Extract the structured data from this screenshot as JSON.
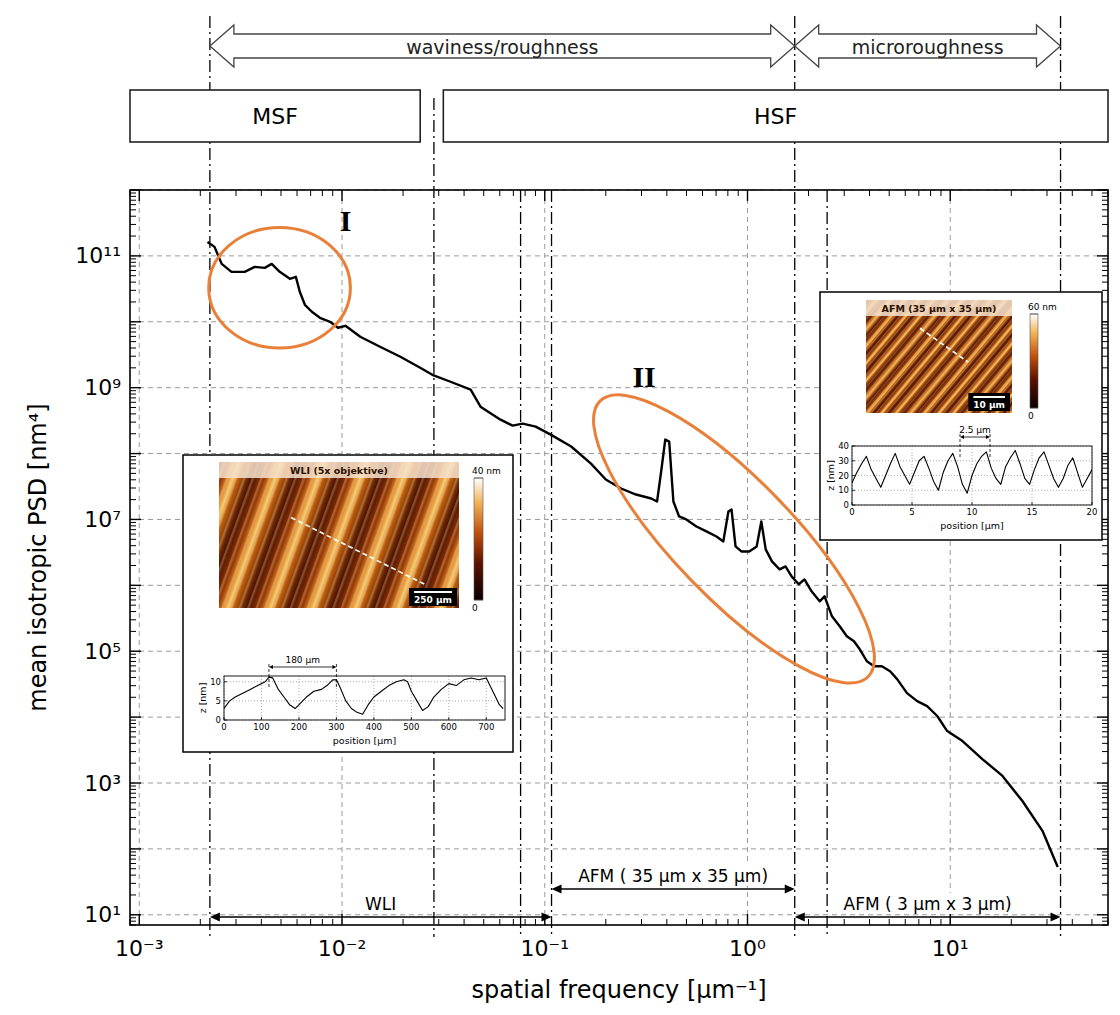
{
  "chart_data": [
    {
      "type": "line",
      "x_label": "spatial frequency [µm⁻¹]",
      "y_label": "mean isotropic PSD [nm⁴]",
      "log": true,
      "grid": true,
      "color": "#000000",
      "xlim": [
        0.0009,
        60
      ],
      "ylim": [
        7,
        1000000000000.0
      ],
      "xticks": [
        {
          "value": 0.001,
          "label": "10⁻³"
        },
        {
          "value": 0.01,
          "label": "10⁻²"
        },
        {
          "value": 0.1,
          "label": "10⁻¹"
        },
        {
          "value": 1,
          "label": "10⁰"
        },
        {
          "value": 10,
          "label": "10¹"
        }
      ],
      "yticks": [
        {
          "value": 10,
          "label": "10¹"
        },
        {
          "value": 1000,
          "label": "10³"
        },
        {
          "value": 100000,
          "label": "10⁵"
        },
        {
          "value": 10000000,
          "label": "10⁷"
        },
        {
          "value": 1000000000,
          "label": "10⁹"
        },
        {
          "value": 100000000000,
          "label": "10¹¹"
        }
      ],
      "x": [
        0.00217,
        0.00235,
        0.00255,
        0.00285,
        0.00331,
        0.00371,
        0.00416,
        0.0045,
        0.00493,
        0.00553,
        0.00592,
        0.00619,
        0.00656,
        0.0071,
        0.00778,
        0.00873,
        0.00955,
        0.0104,
        0.0123,
        0.0154,
        0.0194,
        0.0243,
        0.0279,
        0.0343,
        0.0431,
        0.0482,
        0.0605,
        0.0695,
        0.0778,
        0.0902,
        0.107,
        0.135,
        0.169,
        0.2,
        0.238,
        0.282,
        0.335,
        0.358,
        0.375,
        0.393,
        0.411,
        0.431,
        0.46,
        0.499,
        0.56,
        0.627,
        0.703,
        0.76,
        0.805,
        0.834,
        0.873,
        0.933,
        1.02,
        1.11,
        1.17,
        1.23,
        1.32,
        1.44,
        1.54,
        1.65,
        1.79,
        1.91,
        2.07,
        2.27,
        2.4,
        2.61,
        2.85,
        3.09,
        3.35,
        3.58,
        3.88,
        4.21,
        4.6,
        5.05,
        5.47,
        6.12,
        6.87,
        7.69,
        8.63,
        9.66,
        11.5,
        14.4,
        18.1,
        22.7,
        28.5,
        33.9
      ],
      "values": [
        163000000000.0,
        137000000000.0,
        75700000000.0,
        57300000000.0,
        57300000000.0,
        68100000000.0,
        65800000000.0,
        75700000000.0,
        57300000000.0,
        44900000000.0,
        48100000000.0,
        28500000000.0,
        18100000000.0,
        14200000000.0,
        11500000000.0,
        10000000000.0,
        8110000000.0,
        8690000000.0,
        5930000000.0,
        4180000000.0,
        2950000000.0,
        2010000000.0,
        1570000000.0,
        1230000000.0,
        933000000.0,
        515000000.0,
        327000000.0,
        265000000.0,
        285000000.0,
        256000000.0,
        194000000.0,
        128000000.0,
        70500000.0,
        40400000.0,
        29500000.0,
        23900000.0,
        20800000.0,
        18700000.0,
        53300000.0,
        163000000.0,
        152000000.0,
        18700000.0,
        11100000.0,
        10000000.0,
        7830000.0,
        6580000.0,
        5520000.0,
        4640000.0,
        13200000.0,
        14200000.0,
        3900000.0,
        3270000.0,
        3270000.0,
        3900000.0,
        9330000.0,
        3510000.0,
        2310000.0,
        1750000.0,
        1940000.0,
        1370000.0,
        1040000.0,
        1230000.0,
        811000.0,
        573000.0,
        681000.0,
        339000.0,
        239000.0,
        169000.0,
        142000.0,
        107000.0,
        70500.0,
        59300.0,
        59300.0,
        49800.0,
        37700.0,
        23100.0,
        17500.0,
        14700.0,
        10400.0,
        6140.0,
        4330.0,
        2310.0,
        1280.0,
        533,
        188,
        53.3
      ],
      "vertical_lines": [
        0.00223,
        0.0284,
        0.076,
        0.108,
        1.71,
        2.47,
        35
      ],
      "bands": [
        {
          "label": "waviness/roughness",
          "from": 0.00223,
          "to": 1.71
        },
        {
          "label": "microroughness",
          "from": 1.71,
          "to": 35
        }
      ],
      "regions": [
        {
          "label": "MSF",
          "from": 0.0009,
          "to": 0.0243
        },
        {
          "label": "HSF",
          "from": 0.0316,
          "to": 60
        }
      ],
      "ranges": [
        {
          "label": "WLI",
          "from": 0.00223,
          "to": 0.108
        },
        {
          "label": "AFM ( 35 µm x 35 µm)",
          "from": 0.108,
          "to": 1.71
        },
        {
          "label": "AFM ( 3 µm x 3 µm)",
          "from": 1.71,
          "to": 35
        }
      ],
      "annotations": [
        {
          "text": "I",
          "x": 0.0104,
          "y": 350000000000.0,
          "x_range": [
            0.0022,
            0.011
          ],
          "y_range": [
            4000000000.0,
            270000000000.0
          ]
        },
        {
          "text": "II",
          "x": 0.309,
          "y": 1470000000.0,
          "x_range": [
            0.179,
            4.11
          ],
          "y_range": [
            35000.0,
            730000000.0
          ]
        }
      ]
    },
    {
      "type": "line",
      "x_label": "position [µm]",
      "y_label": "z [nm]",
      "grid": true,
      "color": "#000000",
      "xlim": [
        0,
        750
      ],
      "ylim": [
        0,
        11.5
      ],
      "xticks": [
        0,
        100,
        200,
        300,
        400,
        500,
        600,
        700
      ],
      "yticks": [
        0,
        5,
        10
      ],
      "x": [
        0,
        15,
        30,
        50,
        70,
        90,
        110,
        120,
        130,
        145,
        160,
        175,
        190,
        205,
        220,
        240,
        260,
        275,
        290,
        300,
        310,
        325,
        340,
        355,
        370,
        385,
        400,
        420,
        440,
        460,
        480,
        490,
        500,
        515,
        530,
        545,
        560,
        580,
        600,
        620,
        640,
        660,
        680,
        700,
        720,
        735,
        745
      ],
      "values": [
        3,
        5,
        6,
        7,
        8,
        9,
        10,
        11.2,
        11,
        8,
        6,
        4,
        3,
        4.5,
        6,
        7.5,
        8,
        9,
        10.5,
        10.5,
        8.5,
        5,
        3,
        2,
        1.5,
        4,
        6,
        7.5,
        9,
        10,
        10.5,
        10,
        7.5,
        5,
        2.5,
        3.5,
        6,
        8,
        9.5,
        9,
        10.5,
        11,
        10.5,
        11,
        7,
        4,
        3
      ],
      "annotations": [
        {
          "text": "180 µm",
          "from": 120,
          "to": 300
        }
      ],
      "image": {
        "title": "WLI (5x objektive)",
        "colorbar_range": [
          0,
          40
        ],
        "colorbar_ticks": [
          0,
          {
            "value": 40,
            "label": "40 nm"
          }
        ],
        "scale_bar": "250 µm"
      }
    },
    {
      "type": "line",
      "x_label": "position [µm]",
      "y_label": "z [nm]",
      "grid": true,
      "color": "#000000",
      "xlim": [
        0,
        20
      ],
      "ylim": [
        0,
        40
      ],
      "xticks": [
        0,
        5,
        10,
        15,
        20
      ],
      "yticks": [
        0,
        10,
        20,
        30,
        40
      ],
      "x": [
        0,
        0.4,
        0.8,
        1.2,
        1.6,
        2,
        2.4,
        2.8,
        3.2,
        3.6,
        4,
        4.4,
        4.8,
        5.2,
        5.6,
        6,
        6.4,
        6.8,
        7.2,
        7.6,
        8,
        8.4,
        8.8,
        9.2,
        9.6,
        10,
        10.4,
        10.8,
        11.2,
        11.6,
        12,
        12.4,
        12.8,
        13.2,
        13.6,
        14,
        14.4,
        14.8,
        15.2,
        15.6,
        16,
        16.4,
        16.8,
        17.2,
        17.6,
        18,
        18.4,
        18.8,
        19.2,
        19.6,
        20
      ],
      "values": [
        15,
        22,
        28,
        33,
        24,
        18,
        12,
        20,
        28,
        35,
        26,
        20,
        14,
        22,
        30,
        33,
        25,
        16,
        10,
        22,
        30,
        35,
        26,
        14,
        8,
        20,
        28,
        33,
        36,
        25,
        18,
        14,
        26,
        32,
        37,
        28,
        18,
        14,
        24,
        32,
        36,
        27,
        18,
        12,
        18,
        27,
        32,
        22,
        12,
        18,
        24
      ],
      "annotations": [
        {
          "text": "2.5 µm",
          "from": 9,
          "to": 11.5
        }
      ],
      "image": {
        "title": "AFM (35 µm x 35 µm)",
        "colorbar_range": [
          0,
          60
        ],
        "colorbar_ticks": [
          0,
          {
            "value": 60,
            "label": "60 nm"
          }
        ],
        "scale_bar": "10 µm"
      }
    }
  ]
}
